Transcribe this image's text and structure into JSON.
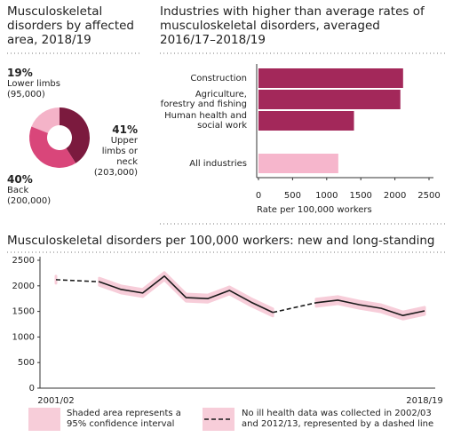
{
  "chart_data": [
    {
      "type": "pie",
      "donut": true,
      "title": "Musculoskeletal disorders by affected area, 2018/19",
      "categories": [
        "Lower limbs",
        "Upper limbs or neck",
        "Back"
      ],
      "values": [
        19,
        41,
        40
      ],
      "value_labels": [
        "19%",
        "41%",
        "40%"
      ],
      "counts": [
        95000,
        203000,
        200000
      ],
      "count_labels": [
        "(95,000)",
        "(203,000)",
        "(200,000)"
      ],
      "colors": [
        "#f4b3c8",
        "#7b1a3e",
        "#d9467a"
      ]
    },
    {
      "type": "bar",
      "orientation": "horizontal",
      "title": "Industries with higher than average rates of musculoskeletal disorders, averaged 2016/17–2018/19",
      "categories": [
        "Construction",
        "Agriculture, forestry and fishing",
        "Human health and social work",
        "All industries"
      ],
      "values": [
        2120,
        2080,
        1400,
        1170
      ],
      "colors": [
        "#a3285a",
        "#a3285a",
        "#a3285a",
        "#f6b6cc"
      ],
      "xlim": [
        0,
        2500
      ],
      "xticks": [
        0,
        500,
        1000,
        1500,
        2000,
        2500
      ],
      "xlabel": "Rate per 100,000 workers"
    },
    {
      "type": "line",
      "title": "Musculoskeletal disorders per 100,000 workers: new and long-standing",
      "categories": [
        "2001/02",
        null,
        null,
        null,
        null,
        null,
        null,
        null,
        null,
        null,
        null,
        null,
        null,
        null,
        null,
        null,
        null,
        "2018/19"
      ],
      "values": [
        2120,
        null,
        2080,
        1930,
        1860,
        2190,
        1770,
        1750,
        1910,
        1680,
        1480,
        null,
        1670,
        1720,
        1630,
        1560,
        1420,
        1510
      ],
      "lower": [
        2050,
        null,
        2010,
        1860,
        1790,
        2120,
        1700,
        1680,
        1840,
        1610,
        1410,
        null,
        1600,
        1650,
        1560,
        1490,
        1350,
        1440
      ],
      "upper": [
        2190,
        null,
        2150,
        2000,
        1930,
        2260,
        1840,
        1820,
        1980,
        1750,
        1550,
        null,
        1740,
        1790,
        1700,
        1630,
        1490,
        1580
      ],
      "color": "#1a1a1a",
      "band_color": "#f7cdd9",
      "ylim": [
        0,
        2500
      ],
      "yticks": [
        0,
        500,
        1000,
        1500,
        2000,
        2500
      ],
      "legend": [
        "Shaded area represents a 95% confidence interval",
        "No ill health data was collected in 2002/03 and 2012/13, represented by a dashed line"
      ]
    }
  ]
}
